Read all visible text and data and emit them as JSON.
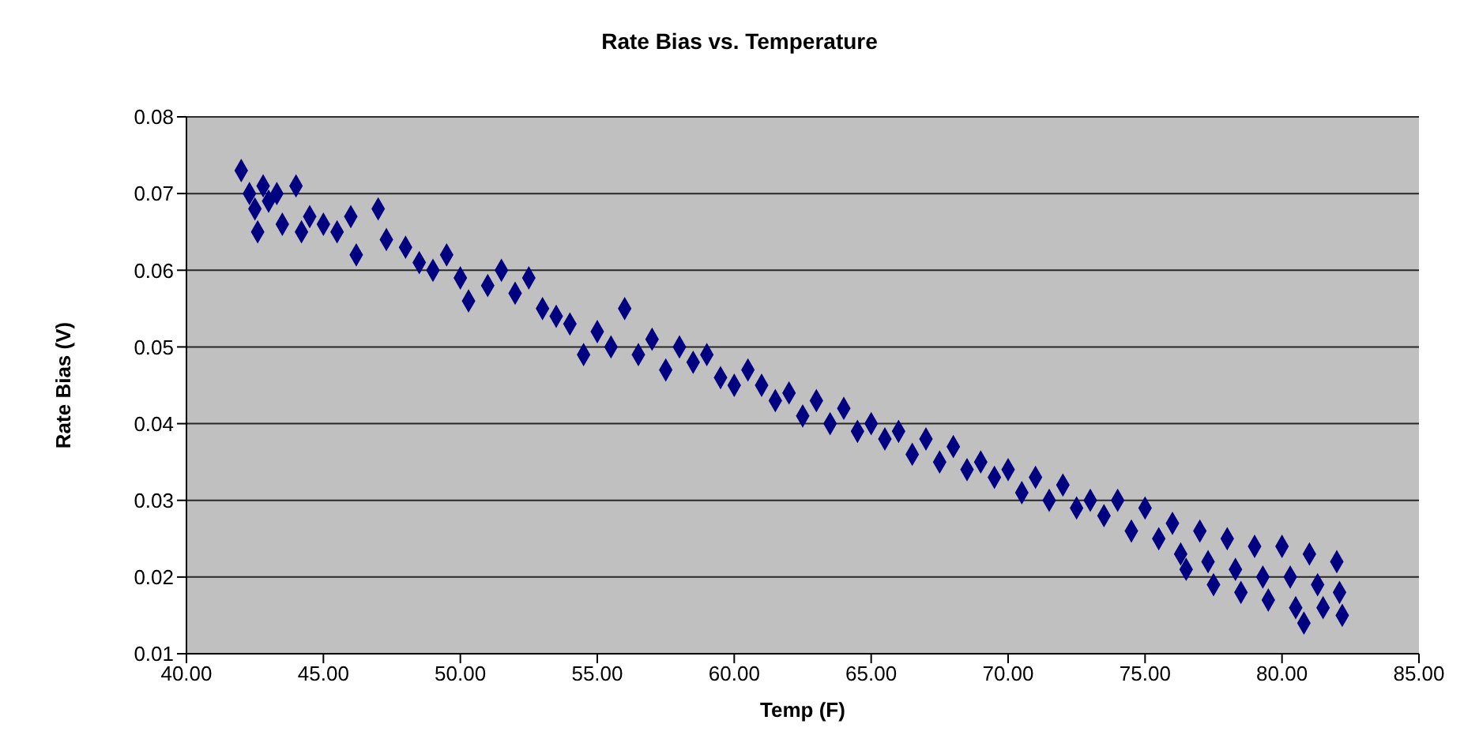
{
  "chart_data": {
    "type": "scatter",
    "title": "Rate Bias vs. Temperature",
    "xlabel": "Temp (F)",
    "ylabel": "Rate Bias (V)",
    "xlim": [
      40,
      85
    ],
    "xticks": [
      {
        "value": 40,
        "label": "40.00"
      },
      {
        "value": 45,
        "label": "45.00"
      },
      {
        "value": 50,
        "label": "50.00"
      },
      {
        "value": 55,
        "label": "55.00"
      },
      {
        "value": 60,
        "label": "60.00"
      },
      {
        "value": 65,
        "label": "65.00"
      },
      {
        "value": 70,
        "label": "70.00"
      },
      {
        "value": 75,
        "label": "75.00"
      },
      {
        "value": 80,
        "label": "80.00"
      },
      {
        "value": 85,
        "label": "85.00"
      }
    ],
    "ylim": [
      0.01,
      0.08
    ],
    "yticks": [
      0.01,
      0.02,
      0.03,
      0.04,
      0.05,
      0.06,
      0.07,
      0.08
    ],
    "grid": "y",
    "marker": "diamond",
    "series": [
      {
        "color": "#000080",
        "x": [
          42.0,
          42.3,
          42.5,
          42.6,
          42.8,
          43.0,
          43.3,
          43.5,
          44.0,
          44.2,
          44.5,
          45.0,
          45.5,
          46.0,
          46.2,
          47.0,
          47.3,
          48.0,
          48.5,
          49.0,
          49.5,
          50.0,
          50.3,
          51.0,
          51.5,
          52.0,
          52.5,
          53.0,
          53.5,
          54.0,
          54.5,
          55.0,
          55.5,
          56.0,
          56.5,
          57.0,
          57.5,
          58.0,
          58.5,
          59.0,
          59.5,
          60.0,
          60.5,
          61.0,
          61.5,
          62.0,
          62.5,
          63.0,
          63.5,
          64.0,
          64.5,
          65.0,
          65.5,
          66.0,
          66.5,
          67.0,
          67.5,
          68.0,
          68.5,
          69.0,
          69.5,
          70.0,
          70.5,
          71.0,
          71.5,
          72.0,
          72.5,
          73.0,
          73.5,
          74.0,
          74.5,
          75.0,
          75.5,
          76.0,
          76.3,
          76.5,
          77.0,
          77.3,
          77.5,
          78.0,
          78.3,
          78.5,
          79.0,
          79.3,
          79.5,
          80.0,
          80.3,
          80.5,
          80.8,
          81.0,
          81.3,
          81.5,
          82.0,
          82.1,
          82.2
        ],
        "values": [
          0.073,
          0.07,
          0.068,
          0.065,
          0.071,
          0.069,
          0.07,
          0.066,
          0.071,
          0.065,
          0.067,
          0.066,
          0.065,
          0.067,
          0.062,
          0.068,
          0.064,
          0.063,
          0.061,
          0.06,
          0.062,
          0.059,
          0.056,
          0.058,
          0.06,
          0.057,
          0.059,
          0.055,
          0.054,
          0.053,
          0.049,
          0.052,
          0.05,
          0.055,
          0.049,
          0.051,
          0.047,
          0.05,
          0.048,
          0.049,
          0.046,
          0.045,
          0.047,
          0.045,
          0.043,
          0.044,
          0.041,
          0.043,
          0.04,
          0.042,
          0.039,
          0.04,
          0.038,
          0.039,
          0.036,
          0.038,
          0.035,
          0.037,
          0.034,
          0.035,
          0.033,
          0.034,
          0.031,
          0.033,
          0.03,
          0.032,
          0.029,
          0.03,
          0.028,
          0.03,
          0.026,
          0.029,
          0.025,
          0.027,
          0.023,
          0.021,
          0.026,
          0.022,
          0.019,
          0.025,
          0.021,
          0.018,
          0.024,
          0.02,
          0.017,
          0.024,
          0.02,
          0.016,
          0.014,
          0.023,
          0.019,
          0.016,
          0.022,
          0.018,
          0.015
        ]
      }
    ]
  }
}
